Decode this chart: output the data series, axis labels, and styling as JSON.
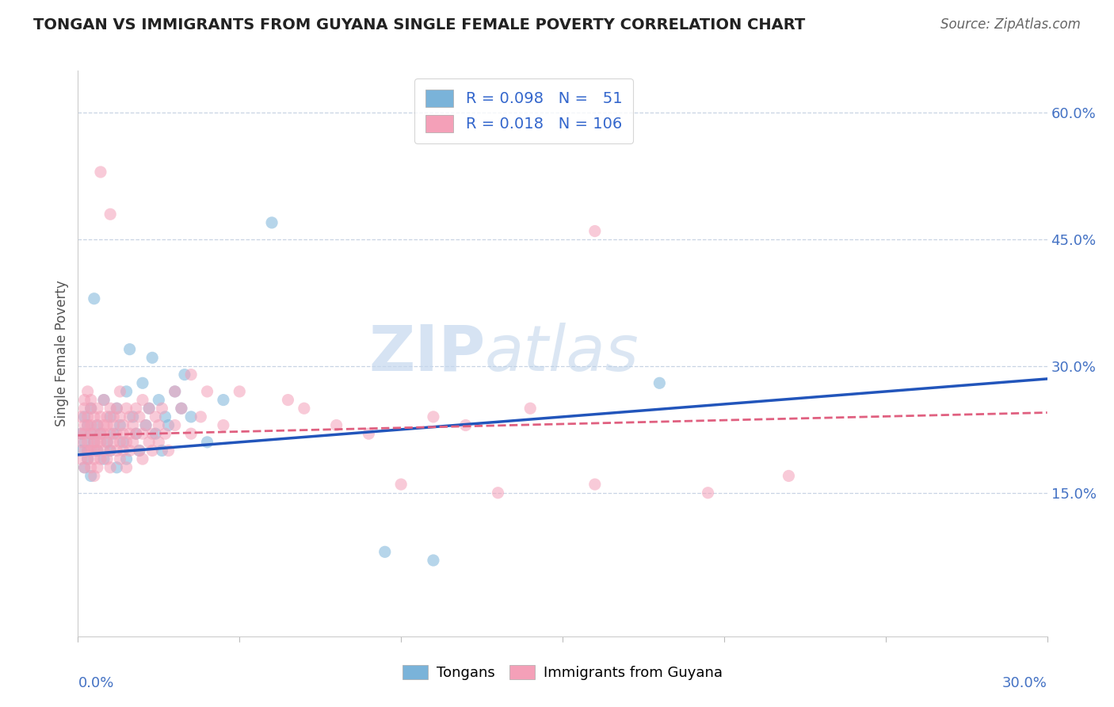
{
  "title": "TONGAN VS IMMIGRANTS FROM GUYANA SINGLE FEMALE POVERTY CORRELATION CHART",
  "source": "Source: ZipAtlas.com",
  "ylabel": "Single Female Poverty",
  "right_yticks": [
    0.15,
    0.3,
    0.45,
    0.6
  ],
  "right_ytick_labels": [
    "15.0%",
    "30.0%",
    "45.0%",
    "60.0%"
  ],
  "xlim": [
    0.0,
    0.3
  ],
  "ylim": [
    -0.02,
    0.65
  ],
  "watermark_zip": "ZIP",
  "watermark_atlas": "atlas",
  "tongans_color": "#7ab3d9",
  "guyana_color": "#f4a0b8",
  "tongans_line_color": "#2255bb",
  "guyana_line_color": "#e06080",
  "tongans_scatter": [
    [
      0.001,
      0.2
    ],
    [
      0.001,
      0.22
    ],
    [
      0.002,
      0.18
    ],
    [
      0.002,
      0.21
    ],
    [
      0.002,
      0.24
    ],
    [
      0.003,
      0.19
    ],
    [
      0.003,
      0.23
    ],
    [
      0.003,
      0.2
    ],
    [
      0.004,
      0.22
    ],
    [
      0.004,
      0.17
    ],
    [
      0.004,
      0.25
    ],
    [
      0.005,
      0.21
    ],
    [
      0.005,
      0.38
    ],
    [
      0.006,
      0.2
    ],
    [
      0.006,
      0.23
    ],
    [
      0.007,
      0.22
    ],
    [
      0.008,
      0.19
    ],
    [
      0.008,
      0.26
    ],
    [
      0.009,
      0.21
    ],
    [
      0.01,
      0.24
    ],
    [
      0.01,
      0.2
    ],
    [
      0.011,
      0.22
    ],
    [
      0.012,
      0.25
    ],
    [
      0.012,
      0.18
    ],
    [
      0.013,
      0.23
    ],
    [
      0.014,
      0.21
    ],
    [
      0.015,
      0.27
    ],
    [
      0.015,
      0.19
    ],
    [
      0.016,
      0.32
    ],
    [
      0.017,
      0.24
    ],
    [
      0.018,
      0.22
    ],
    [
      0.019,
      0.2
    ],
    [
      0.02,
      0.28
    ],
    [
      0.021,
      0.23
    ],
    [
      0.022,
      0.25
    ],
    [
      0.023,
      0.31
    ],
    [
      0.024,
      0.22
    ],
    [
      0.025,
      0.26
    ],
    [
      0.026,
      0.2
    ],
    [
      0.027,
      0.24
    ],
    [
      0.028,
      0.23
    ],
    [
      0.03,
      0.27
    ],
    [
      0.032,
      0.25
    ],
    [
      0.033,
      0.29
    ],
    [
      0.035,
      0.24
    ],
    [
      0.04,
      0.21
    ],
    [
      0.045,
      0.26
    ],
    [
      0.06,
      0.47
    ],
    [
      0.095,
      0.08
    ],
    [
      0.11,
      0.07
    ],
    [
      0.18,
      0.28
    ]
  ],
  "guyana_scatter": [
    [
      0.001,
      0.22
    ],
    [
      0.001,
      0.24
    ],
    [
      0.001,
      0.19
    ],
    [
      0.001,
      0.21
    ],
    [
      0.002,
      0.23
    ],
    [
      0.002,
      0.2
    ],
    [
      0.002,
      0.26
    ],
    [
      0.002,
      0.18
    ],
    [
      0.002,
      0.25
    ],
    [
      0.002,
      0.22
    ],
    [
      0.003,
      0.21
    ],
    [
      0.003,
      0.24
    ],
    [
      0.003,
      0.19
    ],
    [
      0.003,
      0.23
    ],
    [
      0.003,
      0.2
    ],
    [
      0.003,
      0.27
    ],
    [
      0.004,
      0.22
    ],
    [
      0.004,
      0.25
    ],
    [
      0.004,
      0.2
    ],
    [
      0.004,
      0.23
    ],
    [
      0.004,
      0.18
    ],
    [
      0.004,
      0.26
    ],
    [
      0.005,
      0.21
    ],
    [
      0.005,
      0.24
    ],
    [
      0.005,
      0.22
    ],
    [
      0.005,
      0.19
    ],
    [
      0.005,
      0.2
    ],
    [
      0.005,
      0.17
    ],
    [
      0.006,
      0.23
    ],
    [
      0.006,
      0.21
    ],
    [
      0.006,
      0.25
    ],
    [
      0.006,
      0.2
    ],
    [
      0.006,
      0.18
    ],
    [
      0.007,
      0.22
    ],
    [
      0.007,
      0.24
    ],
    [
      0.007,
      0.19
    ],
    [
      0.007,
      0.21
    ],
    [
      0.008,
      0.23
    ],
    [
      0.008,
      0.2
    ],
    [
      0.008,
      0.26
    ],
    [
      0.008,
      0.22
    ],
    [
      0.009,
      0.21
    ],
    [
      0.009,
      0.24
    ],
    [
      0.009,
      0.19
    ],
    [
      0.009,
      0.23
    ],
    [
      0.01,
      0.22
    ],
    [
      0.01,
      0.25
    ],
    [
      0.01,
      0.2
    ],
    [
      0.01,
      0.18
    ],
    [
      0.011,
      0.24
    ],
    [
      0.011,
      0.21
    ],
    [
      0.011,
      0.23
    ],
    [
      0.012,
      0.22
    ],
    [
      0.012,
      0.2
    ],
    [
      0.012,
      0.25
    ],
    [
      0.013,
      0.21
    ],
    [
      0.013,
      0.24
    ],
    [
      0.013,
      0.19
    ],
    [
      0.013,
      0.27
    ],
    [
      0.014,
      0.22
    ],
    [
      0.014,
      0.2
    ],
    [
      0.014,
      0.23
    ],
    [
      0.015,
      0.21
    ],
    [
      0.015,
      0.25
    ],
    [
      0.015,
      0.18
    ],
    [
      0.016,
      0.24
    ],
    [
      0.016,
      0.22
    ],
    [
      0.016,
      0.2
    ],
    [
      0.017,
      0.23
    ],
    [
      0.017,
      0.21
    ],
    [
      0.018,
      0.25
    ],
    [
      0.018,
      0.22
    ],
    [
      0.019,
      0.2
    ],
    [
      0.019,
      0.24
    ],
    [
      0.02,
      0.22
    ],
    [
      0.02,
      0.19
    ],
    [
      0.02,
      0.26
    ],
    [
      0.021,
      0.23
    ],
    [
      0.022,
      0.21
    ],
    [
      0.022,
      0.25
    ],
    [
      0.023,
      0.22
    ],
    [
      0.023,
      0.2
    ],
    [
      0.024,
      0.24
    ],
    [
      0.025,
      0.23
    ],
    [
      0.025,
      0.21
    ],
    [
      0.026,
      0.25
    ],
    [
      0.027,
      0.22
    ],
    [
      0.028,
      0.2
    ],
    [
      0.03,
      0.27
    ],
    [
      0.03,
      0.23
    ],
    [
      0.032,
      0.25
    ],
    [
      0.035,
      0.22
    ],
    [
      0.035,
      0.29
    ],
    [
      0.038,
      0.24
    ],
    [
      0.04,
      0.27
    ],
    [
      0.045,
      0.23
    ],
    [
      0.007,
      0.53
    ],
    [
      0.01,
      0.48
    ],
    [
      0.16,
      0.46
    ],
    [
      0.22,
      0.17
    ],
    [
      0.16,
      0.16
    ],
    [
      0.195,
      0.15
    ],
    [
      0.13,
      0.15
    ],
    [
      0.1,
      0.16
    ],
    [
      0.065,
      0.26
    ],
    [
      0.07,
      0.25
    ],
    [
      0.08,
      0.23
    ],
    [
      0.09,
      0.22
    ],
    [
      0.11,
      0.24
    ],
    [
      0.12,
      0.23
    ],
    [
      0.14,
      0.25
    ],
    [
      0.05,
      0.27
    ]
  ],
  "tongans_trend": [
    0.195,
    0.285
  ],
  "guyana_trend_start": 0.218,
  "guyana_trend_end": 0.245
}
